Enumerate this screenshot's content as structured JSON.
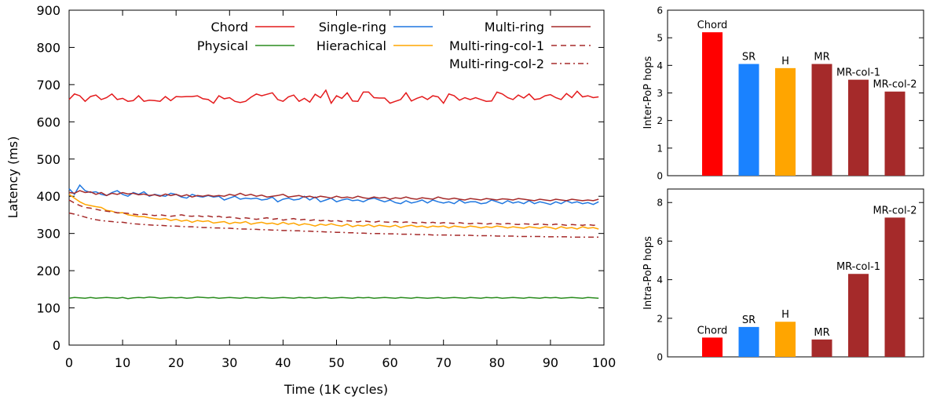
{
  "chart_data": [
    {
      "type": "line",
      "xlabel": "Time (1K cycles)",
      "ylabel": "Latency (ms)",
      "xlim": [
        0,
        100
      ],
      "ylim": [
        0,
        900
      ],
      "xticks": [
        0,
        10,
        20,
        30,
        40,
        50,
        60,
        70,
        80,
        90,
        100
      ],
      "yticks": [
        0,
        100,
        200,
        300,
        400,
        500,
        600,
        700,
        800,
        900
      ],
      "grid": false,
      "legend_position": "top",
      "x_step": 1,
      "series": [
        {
          "name": "Chord",
          "color": "#e41a1c",
          "dash": "",
          "values": [
            660,
            675,
            670,
            655,
            668,
            672,
            660,
            665,
            675,
            660,
            663,
            655,
            657,
            670,
            655,
            658,
            657,
            655,
            668,
            657,
            668,
            667,
            668,
            668,
            670,
            662,
            660,
            650,
            670,
            662,
            665,
            655,
            652,
            655,
            666,
            675,
            670,
            674,
            678,
            660,
            655,
            667,
            672,
            655,
            663,
            653,
            674,
            665,
            685,
            650,
            670,
            663,
            678,
            656,
            655,
            680,
            680,
            665,
            664,
            664,
            650,
            655,
            660,
            678,
            656,
            663,
            668,
            660,
            670,
            667,
            650,
            675,
            670,
            658,
            665,
            660,
            665,
            660,
            655,
            656,
            680,
            675,
            665,
            660,
            672,
            664,
            675,
            660,
            662,
            670,
            673,
            665,
            660,
            676,
            665,
            682,
            667,
            670,
            665,
            667
          ]
        },
        {
          "name": "Physical",
          "color": "#2a8c1e",
          "dash": "",
          "values": [
            126,
            128,
            127,
            126,
            128,
            126,
            127,
            128,
            127,
            126,
            128,
            125,
            127,
            128,
            127,
            129,
            128,
            126,
            127,
            128,
            127,
            128,
            126,
            127,
            129,
            128,
            127,
            128,
            126,
            127,
            128,
            127,
            126,
            128,
            127,
            126,
            128,
            127,
            126,
            127,
            128,
            127,
            126,
            128,
            127,
            128,
            126,
            127,
            128,
            126,
            127,
            128,
            127,
            126,
            128,
            127,
            128,
            126,
            127,
            128,
            127,
            126,
            128,
            127,
            126,
            128,
            127,
            126,
            127,
            128,
            126,
            127,
            128,
            127,
            126,
            128,
            127,
            126,
            128,
            127,
            128,
            126,
            127,
            128,
            127,
            126,
            128,
            127,
            126,
            128,
            127,
            128,
            126,
            127,
            128,
            127,
            126,
            128,
            127,
            126
          ]
        },
        {
          "name": "Single-ring",
          "color": "#1f77e0",
          "dash": "",
          "values": [
            420,
            405,
            430,
            415,
            410,
            412,
            405,
            402,
            410,
            415,
            405,
            400,
            410,
            405,
            412,
            400,
            405,
            402,
            400,
            408,
            405,
            398,
            395,
            405,
            400,
            398,
            402,
            398,
            400,
            390,
            395,
            400,
            392,
            395,
            393,
            395,
            390,
            392,
            398,
            385,
            392,
            395,
            390,
            392,
            400,
            390,
            398,
            385,
            390,
            395,
            385,
            390,
            393,
            388,
            390,
            385,
            392,
            395,
            390,
            385,
            390,
            383,
            380,
            388,
            382,
            385,
            390,
            382,
            390,
            385,
            382,
            385,
            380,
            390,
            382,
            385,
            385,
            380,
            382,
            390,
            385,
            380,
            388,
            382,
            385,
            380,
            388,
            380,
            385,
            382,
            378,
            385,
            380,
            388,
            382,
            385,
            380,
            383,
            378,
            385
          ]
        },
        {
          "name": "Hierachical",
          "color": "#ffa500",
          "dash": "",
          "values": [
            405,
            395,
            385,
            378,
            375,
            372,
            370,
            362,
            360,
            355,
            356,
            350,
            348,
            345,
            345,
            342,
            340,
            338,
            340,
            335,
            338,
            333,
            336,
            330,
            335,
            332,
            334,
            328,
            330,
            332,
            326,
            330,
            328,
            332,
            325,
            328,
            330,
            326,
            328,
            324,
            330,
            325,
            328,
            322,
            326,
            324,
            320,
            325,
            322,
            326,
            322,
            320,
            325,
            318,
            322,
            320,
            324,
            318,
            322,
            320,
            318,
            322,
            316,
            320,
            322,
            318,
            320,
            316,
            320,
            318,
            320,
            315,
            320,
            318,
            316,
            320,
            318,
            315,
            318,
            316,
            320,
            318,
            315,
            318,
            316,
            314,
            318,
            316,
            314,
            318,
            316,
            312,
            318,
            314,
            316,
            312,
            318,
            314,
            316,
            312
          ]
        },
        {
          "name": "Multi-ring",
          "color": "#a52a2a",
          "dash": "",
          "values": [
            410,
            408,
            415,
            410,
            412,
            405,
            410,
            402,
            408,
            405,
            410,
            406,
            408,
            404,
            406,
            402,
            404,
            400,
            406,
            402,
            405,
            400,
            404,
            398,
            402,
            400,
            403,
            400,
            402,
            400,
            405,
            402,
            408,
            402,
            405,
            400,
            403,
            398,
            400,
            402,
            405,
            398,
            400,
            402,
            398,
            400,
            396,
            400,
            398,
            395,
            400,
            396,
            398,
            395,
            400,
            396,
            394,
            398,
            395,
            397,
            392,
            396,
            394,
            398,
            394,
            392,
            396,
            394,
            392,
            398,
            394,
            392,
            395,
            392,
            390,
            394,
            392,
            390,
            394,
            392,
            390,
            393,
            392,
            390,
            394,
            392,
            390,
            388,
            392,
            390,
            388,
            392,
            390,
            388,
            392,
            390,
            388,
            390,
            388,
            392
          ]
        },
        {
          "name": "Multi-ring-col-1",
          "color": "#a52a2a",
          "dash": "7,5",
          "values": [
            390,
            382,
            375,
            370,
            368,
            365,
            362,
            360,
            358,
            356,
            355,
            354,
            352,
            350,
            352,
            350,
            348,
            350,
            348,
            346,
            348,
            350,
            347,
            346,
            348,
            345,
            347,
            344,
            346,
            342,
            344,
            342,
            340,
            342,
            340,
            338,
            340,
            342,
            338,
            340,
            336,
            338,
            340,
            336,
            338,
            335,
            337,
            334,
            336,
            333,
            335,
            332,
            334,
            333,
            331,
            334,
            332,
            330,
            333,
            331,
            330,
            332,
            329,
            331,
            330,
            328,
            330,
            328,
            330,
            327,
            329,
            328,
            327,
            329,
            327,
            326,
            328,
            327,
            325,
            327,
            326,
            325,
            327,
            325,
            324,
            326,
            325,
            324,
            326,
            324,
            323,
            325,
            324,
            322,
            324,
            323,
            322,
            324,
            322,
            323
          ]
        },
        {
          "name": "Multi-ring-col-2",
          "color": "#a52a2a",
          "dash": "7,4,2,4",
          "values": [
            355,
            352,
            348,
            344,
            340,
            337,
            335,
            333,
            332,
            330,
            330,
            328,
            326,
            325,
            324,
            323,
            322,
            322,
            321,
            320,
            320,
            319,
            318,
            318,
            317,
            316,
            316,
            315,
            315,
            314,
            314,
            313,
            312,
            312,
            311,
            311,
            310,
            310,
            309,
            309,
            308,
            308,
            307,
            307,
            306,
            306,
            305,
            305,
            304,
            304,
            303,
            303,
            302,
            302,
            301,
            301,
            300,
            300,
            300,
            299,
            299,
            299,
            298,
            298,
            298,
            297,
            297,
            297,
            296,
            296,
            296,
            296,
            295,
            295,
            295,
            295,
            294,
            294,
            294,
            294,
            293,
            293,
            293,
            293,
            292,
            292,
            292,
            292,
            292,
            291,
            291,
            291,
            291,
            291,
            290,
            290,
            290,
            290,
            290,
            290
          ]
        }
      ]
    },
    {
      "type": "bar",
      "ylabel": "Inter-PoP hops",
      "ylim": [
        0,
        6
      ],
      "yticks": [
        0,
        1,
        2,
        3,
        4,
        5,
        6
      ],
      "categories": [
        "Chord",
        "SR",
        "H",
        "MR",
        "MR-col-1",
        "MR-col-2"
      ],
      "values": [
        5.2,
        4.05,
        3.9,
        4.05,
        3.48,
        3.05
      ],
      "colors": [
        "#ff0000",
        "#1a82ff",
        "#ffa500",
        "#a52a2a",
        "#a52a2a",
        "#a52a2a"
      ]
    },
    {
      "type": "bar",
      "ylabel": "Intra-PoP hops",
      "ylim": [
        0,
        8.7
      ],
      "yticks": [
        0,
        2,
        4,
        6,
        8
      ],
      "categories": [
        "Chord",
        "SR",
        "H",
        "MR",
        "MR-col-1",
        "MR-col-2"
      ],
      "values": [
        1.0,
        1.55,
        1.82,
        0.9,
        4.3,
        7.22
      ],
      "colors": [
        "#ff0000",
        "#1a82ff",
        "#ffa500",
        "#a52a2a",
        "#a52a2a",
        "#a52a2a"
      ]
    }
  ]
}
